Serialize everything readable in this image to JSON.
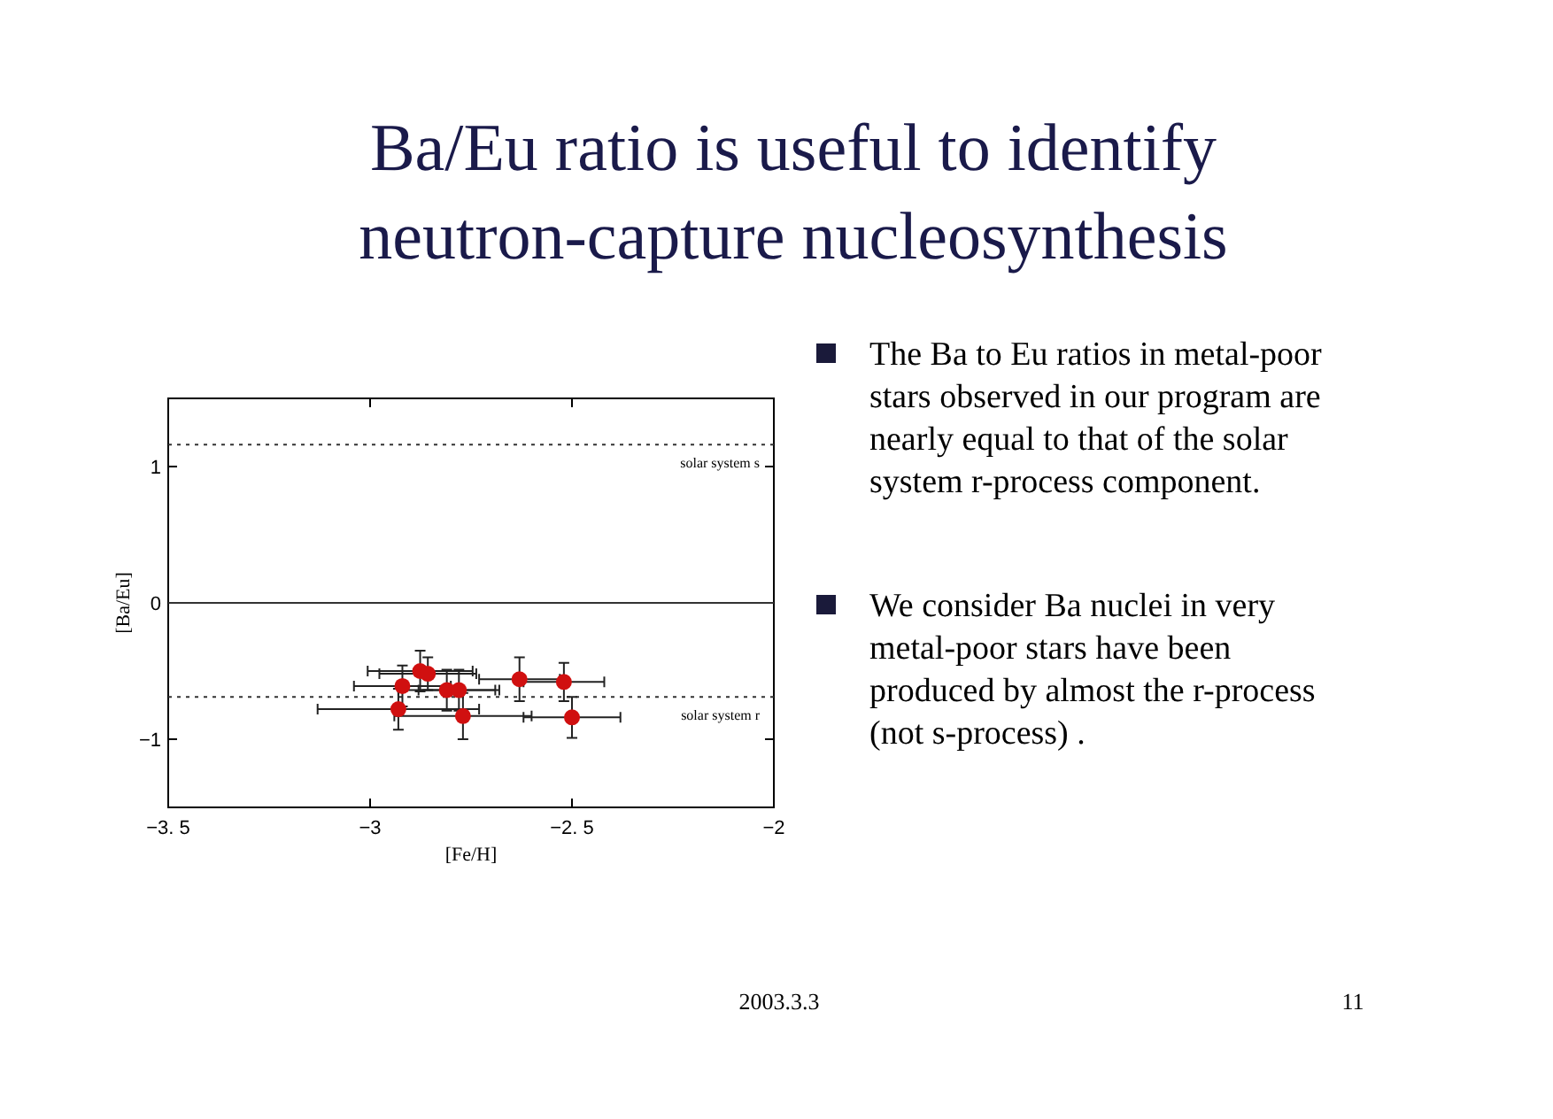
{
  "chart_data": {
    "type": "scatter",
    "title": "Ba/Eu ratio is useful to identify neutron-capture nucleosynthesis",
    "xlabel": "[Fe/H]",
    "ylabel": "[Ba/Eu]",
    "x": [
      -2.876,
      -2.857,
      -2.92,
      -2.81,
      -2.78,
      -2.93,
      -2.77,
      -2.63,
      -2.52,
      -2.5
    ],
    "series": [
      {
        "color": "#d01010",
        "values": [
          -0.5,
          -0.52,
          -0.61,
          -0.64,
          -0.64,
          -0.78,
          -0.83,
          -0.56,
          -0.58,
          -0.84
        ],
        "errors": [
          0.15,
          0.12,
          0.15,
          0.15,
          0.15,
          0.15,
          0.17,
          0.16,
          0.14,
          0.15
        ],
        "xerrors": [
          0.13,
          0.12,
          0.12,
          0.12,
          0.1,
          0.2,
          0.17,
          0.1,
          0.1,
          0.12
        ]
      }
    ],
    "marker": "circle",
    "xlim": [
      -3.5,
      -2
    ],
    "ylim": [
      -1.5,
      1.5
    ],
    "xticks": [
      {
        "value": -3.5,
        "label": "−3. 5"
      },
      {
        "value": -3,
        "label": "−3"
      },
      {
        "value": -2.5,
        "label": "−2. 5"
      },
      {
        "value": -2,
        "label": "−2"
      }
    ],
    "yticks": [
      {
        "value": -1,
        "label": "−1"
      },
      0,
      1
    ],
    "grid": false,
    "ref_lines": [
      {
        "axis": "y",
        "value": 1.16,
        "label": "solar system s",
        "line_style": "dotted"
      },
      {
        "axis": "y",
        "value": 0,
        "line_style": "solid"
      },
      {
        "axis": "y",
        "value": -0.69,
        "label": "solar system r",
        "line_style": "dotted"
      }
    ],
    "annotations": [
      "The Ba to Eu ratios in metal-poor stars observed in our program are nearly equal to that of the solar system r-process component.",
      "We consider Ba nuclei in very metal-poor stars have been produced by almost the r-process (not s-process) .",
      "2003.3.3",
      "11"
    ]
  }
}
